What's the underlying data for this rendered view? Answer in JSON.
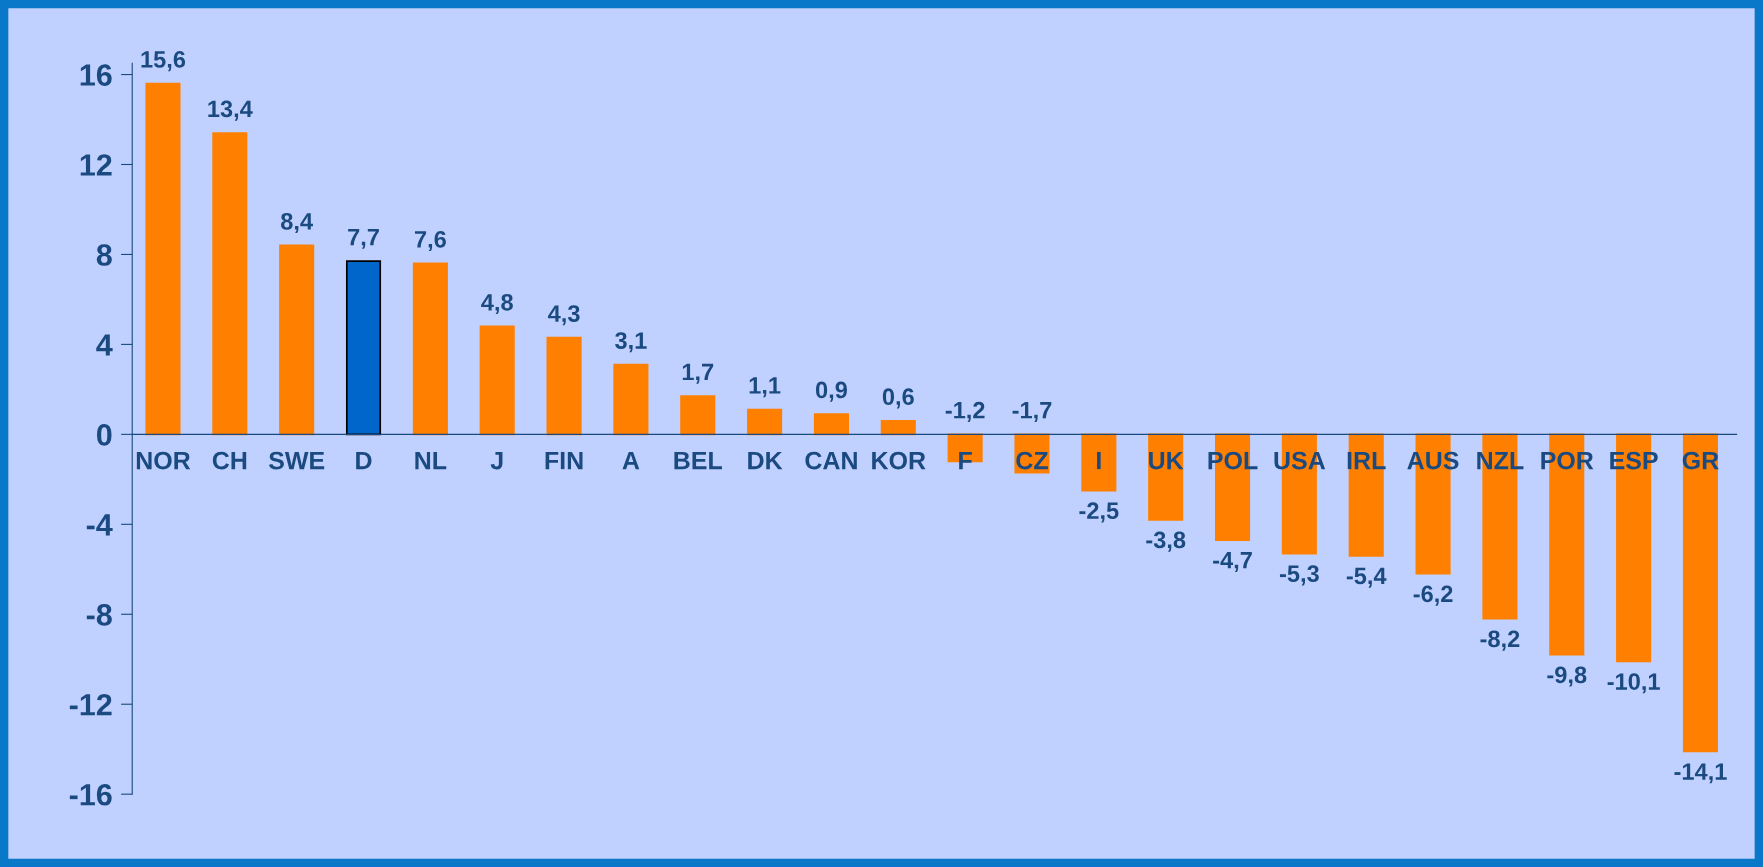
{
  "chart_data": {
    "type": "bar",
    "categories": [
      "NOR",
      "CH",
      "SWE",
      "D",
      "NL",
      "J",
      "FIN",
      "A",
      "BEL",
      "DK",
      "CAN",
      "KOR",
      "F",
      "CZ",
      "I",
      "UK",
      "POL",
      "USA",
      "IRL",
      "AUS",
      "NZL",
      "POR",
      "ESP",
      "GR"
    ],
    "values": [
      15.6,
      13.4,
      8.4,
      7.7,
      7.6,
      4.8,
      4.3,
      3.1,
      1.7,
      1.1,
      0.9,
      0.6,
      -1.2,
      -1.7,
      -2.5,
      -3.8,
      -4.7,
      -5.3,
      -5.4,
      -6.2,
      -8.2,
      -9.8,
      -10.1,
      -14.1
    ],
    "value_labels": [
      "15,6",
      "13,4",
      "8,4",
      "7,7",
      "7,6",
      "4,8",
      "4,3",
      "3,1",
      "1,7",
      "1,1",
      "0,9",
      "0,6",
      "-1,2",
      "-1,7",
      "-2,5",
      "-3,8",
      "-4,7",
      "-5,3",
      "-5,4",
      "-6,2",
      "-8,2",
      "-9,8",
      "-10,1",
      "-14,1"
    ],
    "colors": [
      "#ff8000",
      "#ff8000",
      "#ff8000",
      "#0066cc",
      "#ff8000",
      "#ff8000",
      "#ff8000",
      "#ff8000",
      "#ff8000",
      "#ff8000",
      "#ff8000",
      "#ff8000",
      "#ff8000",
      "#ff8000",
      "#ff8000",
      "#ff8000",
      "#ff8000",
      "#ff8000",
      "#ff8000",
      "#ff8000",
      "#ff8000",
      "#ff8000",
      "#ff8000",
      "#ff8000"
    ],
    "ylim": [
      -16,
      16.5
    ],
    "yticks": [
      -16,
      -12,
      -8,
      -4,
      0,
      4,
      8,
      12,
      16
    ],
    "grid": false,
    "legend": false
  }
}
